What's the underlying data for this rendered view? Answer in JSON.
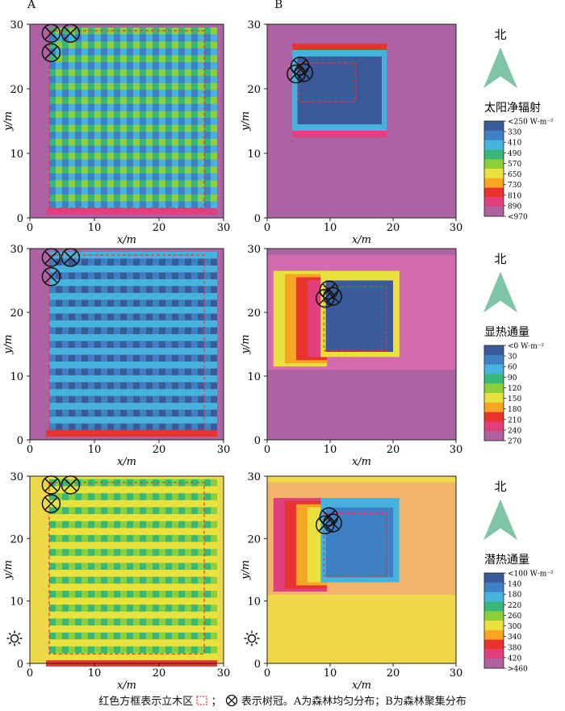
{
  "panels": {
    "a_label": "A",
    "b_label": "B"
  },
  "axes": {
    "xlabel": "x/m",
    "ylabel": "y/m",
    "ticks": [
      "0",
      "10",
      "20",
      "30"
    ]
  },
  "north_label": "北",
  "colorbars": [
    {
      "title": "太阳净辐射",
      "labels": [
        "<250 W·m⁻²",
        "330",
        "410",
        "490",
        "570",
        "650",
        "730",
        "810",
        "890",
        "<970"
      ]
    },
    {
      "title": "显热通量",
      "labels": [
        "<0 W·m⁻²",
        "30",
        "60",
        "90",
        "120",
        "150",
        "180",
        "210",
        "240",
        "270"
      ]
    },
    {
      "title": "潜热通量",
      "labels": [
        "<100 W·m⁻²",
        "140",
        "180",
        "220",
        "260",
        "300",
        "340",
        "380",
        "420",
        ">460"
      ]
    }
  ],
  "caption": {
    "part1": "红色方框表示立木区",
    "part2": "；",
    "part3": "表示树冠。A为森林均匀分布；B为森林聚集分布"
  },
  "chart_data": [
    {
      "type": "heatmap",
      "row": 1,
      "panel": "A",
      "variable": "太阳净辐射",
      "xlim": [
        0,
        30
      ],
      "ylim": [
        0,
        30
      ],
      "description_values": {
        "forest_stand_x": [
          3,
          28
        ],
        "forest_stand_y": [
          2,
          29.5
        ],
        "background": 970,
        "pattern": "checkerboard 330-650"
      }
    },
    {
      "type": "heatmap",
      "row": 1,
      "panel": "B",
      "variable": "太阳净辐射",
      "xlim": [
        0,
        30
      ],
      "ylim": [
        0,
        30
      ],
      "description_values": {
        "forest_stand_x": [
          5,
          18
        ],
        "forest_stand_y": [
          14,
          24
        ],
        "background": 970,
        "stand_value": 330
      }
    },
    {
      "type": "heatmap",
      "row": 2,
      "panel": "A",
      "variable": "显热通量",
      "xlim": [
        0,
        30
      ],
      "ylim": [
        0,
        30
      ],
      "description_values": {
        "forest_stand_x": [
          3,
          27
        ],
        "forest_stand_y": [
          1.5,
          29
        ],
        "background": 270,
        "pattern": "checkerboard 30-90"
      }
    },
    {
      "type": "heatmap",
      "row": 2,
      "panel": "B",
      "variable": "显热通量",
      "xlim": [
        0,
        30
      ],
      "ylim": [
        0,
        30
      ],
      "description_values": {
        "forest_stand_x": [
          9,
          20
        ],
        "forest_stand_y": [
          14,
          24
        ],
        "background": 270,
        "stand_value": 30
      }
    },
    {
      "type": "heatmap",
      "row": 3,
      "panel": "A",
      "variable": "潜热通量",
      "xlim": [
        0,
        30
      ],
      "ylim": [
        0,
        30
      ],
      "description_values": {
        "forest_stand_x": [
          3,
          27
        ],
        "forest_stand_y": [
          0.5,
          29
        ],
        "background": 300,
        "pattern": "checkerboard 240-300"
      }
    },
    {
      "type": "heatmap",
      "row": 3,
      "panel": "B",
      "variable": "潜热通量",
      "xlim": [
        0,
        30
      ],
      "ylim": [
        0,
        30
      ],
      "description_values": {
        "forest_stand_x": [
          9,
          20
        ],
        "forest_stand_y": [
          14,
          24
        ],
        "background": 300,
        "stand_value": 180
      }
    }
  ]
}
